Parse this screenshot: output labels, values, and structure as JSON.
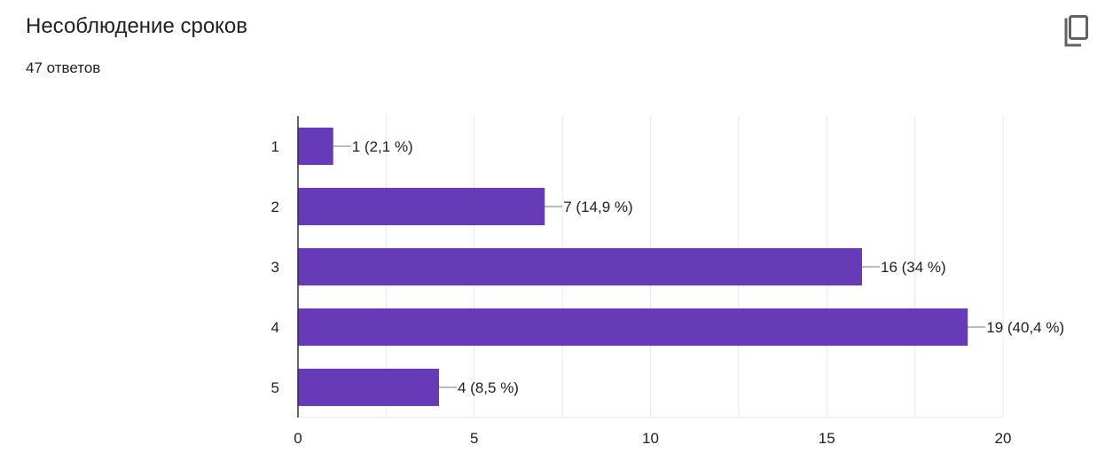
{
  "header": {
    "title": "Несоблюдение сроков",
    "responses": "47 ответов",
    "copy_icon": "copy-icon"
  },
  "colors": {
    "bar": "#673ab7",
    "grid": "#e8e8e8",
    "axis": "#333333"
  },
  "chart_data": {
    "type": "bar",
    "orientation": "horizontal",
    "title": "Несоблюдение сроков",
    "categories": [
      "1",
      "2",
      "3",
      "4",
      "5"
    ],
    "values": [
      1,
      7,
      16,
      19,
      4
    ],
    "value_labels": [
      "1 (2,1 %)",
      "7 (14,9 %)",
      "16 (34 %)",
      "19 (40,4 %)",
      "4 (8,5 %)"
    ],
    "xlim": [
      0,
      20
    ],
    "xticks": [
      0,
      5,
      10,
      15,
      20
    ],
    "xlabel": "",
    "ylabel": "",
    "grid": true,
    "legend": "none"
  }
}
